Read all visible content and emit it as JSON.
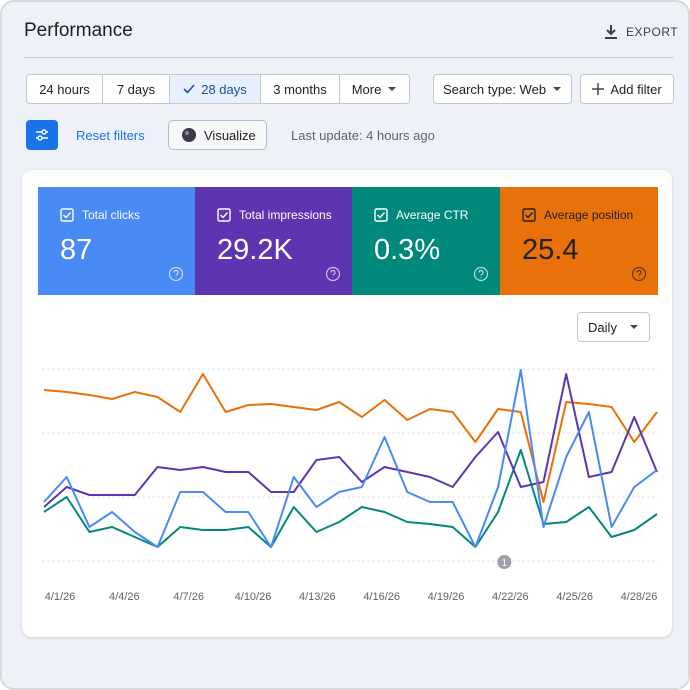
{
  "header": {
    "title": "Performance",
    "export": "EXPORT"
  },
  "toolbar": {
    "ranges": [
      "24 hours",
      "7 days",
      "28 days",
      "3 months",
      "More"
    ],
    "selected": "28 days",
    "search_type": "Search type: Web",
    "add_filter": "Add filter"
  },
  "actions": {
    "reset": "Reset filters",
    "visualize": "Visualize",
    "last_update": "Last update: 4 hours ago"
  },
  "granularity": "Daily",
  "chart_data": {
    "type": "line",
    "categories": [
      "4/1/26",
      null,
      null,
      "4/4/26",
      null,
      null,
      "4/7/26",
      null,
      null,
      "4/10/26",
      null,
      null,
      "4/13/26",
      null,
      null,
      "4/16/26",
      null,
      null,
      "4/19/26",
      null,
      null,
      "4/22/26",
      null,
      null,
      "4/25/26",
      null,
      null,
      "4/28/26"
    ],
    "ylim": [
      0,
      200
    ],
    "annotations": [
      {
        "text": "1",
        "at": "4/22/26"
      }
    ],
    "series": [
      {
        "name": "Total clicks",
        "total": "87",
        "color": "#4a8af4",
        "values": [
          60,
          85,
          35,
          50,
          30,
          15,
          70,
          70,
          50,
          50,
          15,
          85,
          55,
          70,
          75,
          125,
          70,
          60,
          60,
          15,
          75,
          192,
          35,
          105,
          150,
          35,
          75,
          92
        ]
      },
      {
        "name": "Total impressions",
        "total": "29.2K",
        "color": "#5e35b1",
        "values": [
          55,
          75,
          67,
          67,
          67,
          95,
          92,
          95,
          90,
          90,
          70,
          70,
          102,
          105,
          80,
          95,
          90,
          85,
          75,
          105,
          130,
          75,
          80,
          188,
          85,
          90,
          145,
          90
        ]
      },
      {
        "name": "Average CTR",
        "total": "0.3%",
        "color": "#00897b",
        "values": [
          50,
          65,
          30,
          35,
          25,
          15,
          35,
          32,
          32,
          35,
          15,
          55,
          30,
          40,
          55,
          50,
          40,
          38,
          35,
          15,
          50,
          112,
          38,
          40,
          55,
          25,
          32,
          48
        ]
      },
      {
        "name": "Average position",
        "total": "25.4",
        "color": "#e8710a",
        "values": [
          172,
          170,
          167,
          163,
          170,
          165,
          150,
          188,
          150,
          157,
          158,
          155,
          152,
          160,
          145,
          162,
          142,
          153,
          150,
          120,
          153,
          150,
          60,
          160,
          158,
          155,
          120,
          150
        ]
      }
    ]
  }
}
